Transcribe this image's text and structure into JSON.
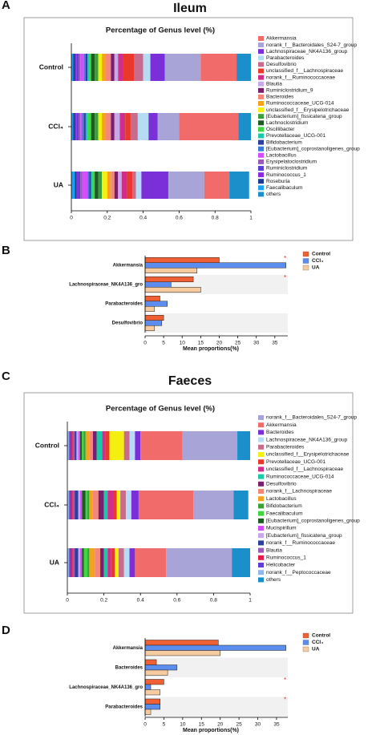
{
  "chart_data": [
    {
      "type": "bar",
      "stacked": true,
      "orientation": "horizontal",
      "panel": "A",
      "title": "Ileum",
      "subtitle": "Percentage of Genus level (%)",
      "categories": [
        "Control",
        "CCl₄",
        "UA"
      ],
      "xlim": [
        0,
        1
      ],
      "xticks": [
        0,
        0.2,
        0.4,
        0.6,
        0.8,
        1
      ],
      "series": [
        {
          "name": "Akkermansia",
          "color": "#f26b6b",
          "values": [
            0.2,
            0.33,
            0.14
          ]
        },
        {
          "name": "norank_f__Bacteroidales_S24-7_group",
          "color": "#a9a4d8",
          "values": [
            0.2,
            0.12,
            0.2
          ]
        },
        {
          "name": "Lachnospiraceae_NK4A136_group",
          "color": "#7a2fd8",
          "values": [
            0.08,
            0.05,
            0.15
          ]
        },
        {
          "name": "Parabacteroides",
          "color": "#b5dbf5",
          "values": [
            0.04,
            0.06,
            0.03
          ]
        },
        {
          "name": "Desulfovibrio",
          "color": "#c96b8c",
          "values": [
            0.05,
            0.04,
            0.02
          ]
        },
        {
          "name": "unclassified_f__Lachnospiraceae",
          "color": "#e8392c",
          "values": [
            0.06,
            0.03,
            0.03
          ]
        },
        {
          "name": "norank_f__Ruminococcaceae",
          "color": "#cf2f8b",
          "values": [
            0.03,
            0.03,
            0.03
          ]
        },
        {
          "name": "Blautia",
          "color": "#c8a8e8",
          "values": [
            0.02,
            0.03,
            0.02
          ]
        },
        {
          "name": "Ruminiclostridium_9",
          "color": "#7a1f6e",
          "values": [
            0.02,
            0.02,
            0.02
          ]
        },
        {
          "name": "Bacteroides",
          "color": "#f4877a",
          "values": [
            0.03,
            0.03,
            0.02
          ]
        },
        {
          "name": "Ruminococcaceae_UCG-014",
          "color": "#f5a31c",
          "values": [
            0.02,
            0.02,
            0.02
          ]
        },
        {
          "name": "unclassified_f__Erysipelotrichaceae",
          "color": "#f3f00f",
          "values": [
            0.02,
            0.02,
            0.03
          ]
        },
        {
          "name": "[Eubacterium]_fissicatena_group",
          "color": "#3c9e3a",
          "values": [
            0.02,
            0.02,
            0.02
          ]
        },
        {
          "name": "Lachnoclostridium",
          "color": "#1e5a24",
          "values": [
            0.02,
            0.02,
            0.02
          ]
        },
        {
          "name": "Oscillibacter",
          "color": "#3fd63f",
          "values": [
            0.01,
            0.02,
            0.01
          ]
        },
        {
          "name": "Prevotellaceae_UCG-001",
          "color": "#1cc9a6",
          "values": [
            0.01,
            0.01,
            0.01
          ]
        },
        {
          "name": "Bifidobacterium",
          "color": "#2c3e9e",
          "values": [
            0.01,
            0.01,
            0.01
          ]
        },
        {
          "name": "[Eubacterium]_coprostanoligenes_group",
          "color": "#3a7bd5",
          "values": [
            0.01,
            0.01,
            0.01
          ]
        },
        {
          "name": "Lactobacillus",
          "color": "#d44dff",
          "values": [
            0.02,
            0.01,
            0.03
          ]
        },
        {
          "name": "Erysipelatoclostridium",
          "color": "#9b59b6",
          "values": [
            0.01,
            0.01,
            0.01
          ]
        },
        {
          "name": "Ruminiclostridium",
          "color": "#5d3fd3",
          "values": [
            0.01,
            0.01,
            0.01
          ]
        },
        {
          "name": "Ruminococcus_1",
          "color": "#8a2be2",
          "values": [
            0.01,
            0.01,
            0.01
          ]
        },
        {
          "name": "Roseburia",
          "color": "#1f3a93",
          "values": [
            0.01,
            0.01,
            0.01
          ]
        },
        {
          "name": "Faecalibaculum",
          "color": "#1da1f2",
          "values": [
            0.01,
            0.01,
            0.02
          ]
        },
        {
          "name": "others",
          "color": "#1b8fc9",
          "values": [
            0.08,
            0.07,
            0.11
          ]
        }
      ]
    },
    {
      "type": "bar",
      "stacked": false,
      "orientation": "horizontal",
      "panel": "B",
      "xlabel": "Mean proportions(%)",
      "categories": [
        "Akkermansia",
        "Lachnospiraceae_NK4A136_gro",
        "Parabacteroides",
        "Desulfovibrio"
      ],
      "significance": [
        "*",
        "*",
        null,
        null
      ],
      "xlim": [
        0,
        38.5
      ],
      "xticks": [
        0,
        5,
        10,
        15,
        20,
        25,
        30,
        35
      ],
      "series": [
        {
          "name": "Control",
          "color": "#ef6035",
          "values": [
            20,
            13,
            4,
            5
          ]
        },
        {
          "name": "CCl₄",
          "color": "#5b8def",
          "values": [
            38,
            7,
            6,
            4.5
          ]
        },
        {
          "name": "UA",
          "color": "#f7cba0",
          "values": [
            14,
            15,
            2.5,
            2.5
          ]
        }
      ]
    },
    {
      "type": "bar",
      "stacked": true,
      "orientation": "horizontal",
      "panel": "C",
      "title": "Faeces",
      "subtitle": "Percentage of Genus level (%)",
      "categories": [
        "Control",
        "CCl₄",
        "UA"
      ],
      "xlim": [
        0,
        1
      ],
      "xticks": [
        0,
        0.2,
        0.4,
        0.6,
        0.8,
        1
      ],
      "series": [
        {
          "name": "norank_f__Bacteroidales_S24-7_group",
          "color": "#a9a4d8",
          "values": [
            0.3,
            0.22,
            0.36
          ]
        },
        {
          "name": "Akkermansia",
          "color": "#f26b6b",
          "values": [
            0.23,
            0.3,
            0.17
          ]
        },
        {
          "name": "Bacteroides",
          "color": "#7a2fd8",
          "values": [
            0.03,
            0.04,
            0.03
          ]
        },
        {
          "name": "Lachnospiraceae_NK4A136_group",
          "color": "#b5dbf5",
          "values": [
            0.03,
            0.03,
            0.03
          ]
        },
        {
          "name": "Parabacteroides",
          "color": "#c96b8c",
          "values": [
            0.03,
            0.03,
            0.03
          ]
        },
        {
          "name": "unclassified_f__Erysipelotrichaceae",
          "color": "#f3f00f",
          "values": [
            0.08,
            0.02,
            0.02
          ]
        },
        {
          "name": "Prevotellaceae_UCG-001",
          "color": "#e8392c",
          "values": [
            0.02,
            0.02,
            0.02
          ]
        },
        {
          "name": "unclassified_f__Lachnospiraceae",
          "color": "#cf2f8b",
          "values": [
            0.02,
            0.03,
            0.02
          ]
        },
        {
          "name": "Ruminococcaceae_UCG-014",
          "color": "#1cc9a6",
          "values": [
            0.03,
            0.02,
            0.02
          ]
        },
        {
          "name": "Desulfovibrio",
          "color": "#7a1f6e",
          "values": [
            0.02,
            0.03,
            0.02
          ]
        },
        {
          "name": "norank_f__Lachnospiraceae",
          "color": "#f4877a",
          "values": [
            0.02,
            0.03,
            0.03
          ]
        },
        {
          "name": "Lactobacillus",
          "color": "#f5a31c",
          "values": [
            0.02,
            0.02,
            0.03
          ]
        },
        {
          "name": "Bifidobacterium",
          "color": "#3c9e3a",
          "values": [
            0.01,
            0.01,
            0.01
          ]
        },
        {
          "name": "Faecalibaculum",
          "color": "#3fd63f",
          "values": [
            0.01,
            0.01,
            0.02
          ]
        },
        {
          "name": "[Eubacterium]_coprostanoligenes_group",
          "color": "#1e5a24",
          "values": [
            0.01,
            0.02,
            0.01
          ]
        },
        {
          "name": "Mucispirillum",
          "color": "#d44dff",
          "values": [
            0.01,
            0.01,
            0.01
          ]
        },
        {
          "name": "[Eubacterium]_fissicatena_group",
          "color": "#c8a8e8",
          "values": [
            0.01,
            0.01,
            0.01
          ]
        },
        {
          "name": "norank_f__Ruminococcaceae",
          "color": "#2c3e9e",
          "values": [
            0.01,
            0.02,
            0.02
          ]
        },
        {
          "name": "Blautia",
          "color": "#9b59b6",
          "values": [
            0.01,
            0.01,
            0.01
          ]
        },
        {
          "name": "Ruminococcus_1",
          "color": "#e6194b",
          "values": [
            0.01,
            0.01,
            0.01
          ]
        },
        {
          "name": "Helicobacter",
          "color": "#5d3fd3",
          "values": [
            0.01,
            0.01,
            0.01
          ]
        },
        {
          "name": "norank_f__Peptococcaceae",
          "color": "#8fb8e8",
          "values": [
            0.01,
            0.01,
            0.01
          ]
        },
        {
          "name": "others",
          "color": "#1b8fc9",
          "values": [
            0.07,
            0.08,
            0.1
          ]
        }
      ]
    },
    {
      "type": "bar",
      "stacked": false,
      "orientation": "horizontal",
      "panel": "D",
      "xlabel": "Mean proportions(%)",
      "categories": [
        "Akkermansia",
        "Bacteroides",
        "Lachnospiraceae_NK4A136_gro",
        "Parabacteroides"
      ],
      "significance": [
        null,
        null,
        "*",
        "*"
      ],
      "xlim": [
        0,
        38
      ],
      "xticks": [
        0,
        5,
        10,
        15,
        20,
        25,
        30,
        35
      ],
      "series": [
        {
          "name": "Control",
          "color": "#ef6035",
          "values": [
            19.5,
            3,
            5,
            4
          ]
        },
        {
          "name": "CCl₄",
          "color": "#5b8def",
          "values": [
            37.5,
            8.5,
            1.5,
            4
          ]
        },
        {
          "name": "UA",
          "color": "#f7cba0",
          "values": [
            20,
            6,
            4,
            1.5
          ]
        }
      ]
    }
  ]
}
